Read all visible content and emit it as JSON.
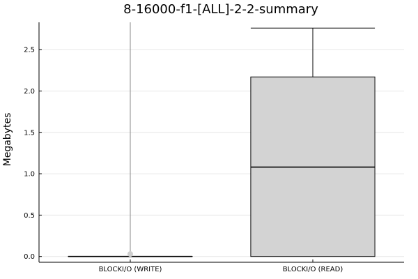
{
  "chart_data": {
    "type": "box",
    "title": "8-16000-f1-[ALL]-2-2-summary",
    "xlabel": "",
    "ylabel": "Megabytes",
    "ylim": [
      -0.07,
      2.83
    ],
    "yticks": [
      0.0,
      0.5,
      1.0,
      1.5,
      2.0,
      2.5
    ],
    "ytick_labels": [
      "0.0",
      "0.5",
      "1.0",
      "1.5",
      "2.0",
      "2.5"
    ],
    "grid": true,
    "categories": [
      "BLOCKI/O (WRITE)",
      "BLOCKI/O (READ)"
    ],
    "boxes": [
      {
        "category": "BLOCKI/O (WRITE)",
        "min": 0.0,
        "q1": 0.0,
        "median": 0.0,
        "q3": 0.0,
        "max": 0.0,
        "outliers": [
          0.03
        ],
        "whisker_line_top": 2.83,
        "fill": "#d3d3d3"
      },
      {
        "category": "BLOCKI/O (READ)",
        "min": 0.0,
        "q1": 0.0,
        "median": 1.08,
        "q3": 2.17,
        "max": 2.76,
        "outliers": [],
        "fill": "#d3d3d3"
      }
    ]
  }
}
